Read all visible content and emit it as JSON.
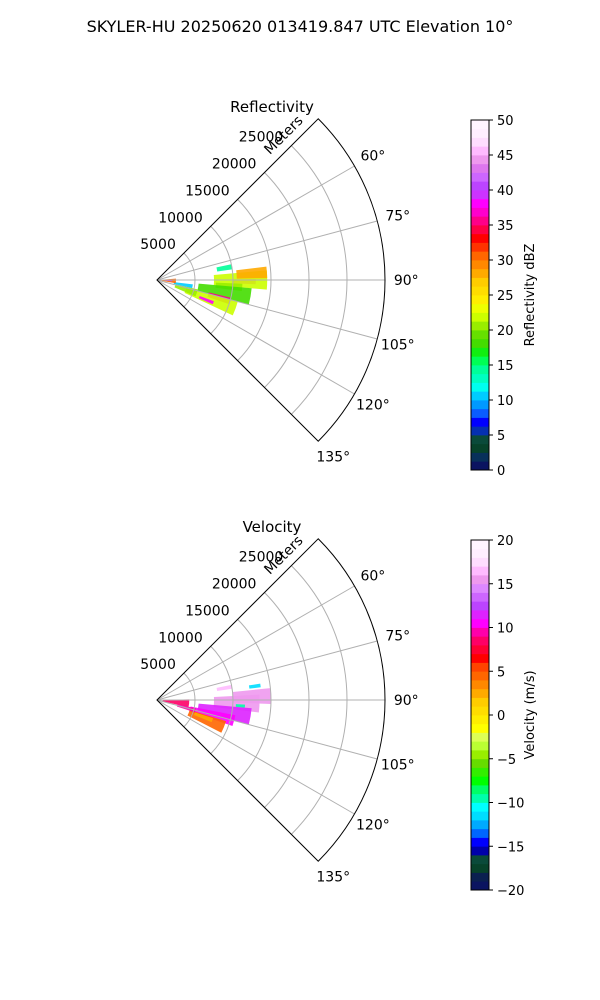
{
  "figure": {
    "title": "SKYLER-HU  20250620  013419.847 UTC Elevation 10°"
  },
  "chart_data": [
    {
      "type": "heatmap",
      "subtype": "polar-ppi-sector",
      "title": "Reflectivity",
      "range_label": "Meters",
      "range_ticks": [
        5000,
        10000,
        15000,
        20000,
        25000
      ],
      "range_tick_labels": [
        "5000",
        "10000",
        "15000",
        "20000",
        "25000"
      ],
      "range_max": 30000,
      "azimuth_range_deg": [
        45,
        135
      ],
      "azimuth_ticks_deg": [
        60,
        75,
        90,
        105,
        120,
        135
      ],
      "azimuth_tick_labels": [
        "60°",
        "75°",
        "90°",
        "105°",
        "120°",
        "135°"
      ],
      "grid": true,
      "colorbar": {
        "label": "Reflectivity dBZ",
        "range": [
          0,
          50
        ],
        "ticks": [
          0,
          5,
          10,
          15,
          20,
          25,
          30,
          35,
          40,
          45,
          50
        ],
        "tick_labels": [
          "0",
          "5",
          "10",
          "15",
          "20",
          "25",
          "30",
          "35",
          "40",
          "45",
          "50"
        ],
        "colors": [
          "#0b1460",
          "#08305a",
          "#07422a",
          "#0a4a3a",
          "#0530b0",
          "#0000ff",
          "#0a5cff",
          "#0099ff",
          "#00ccff",
          "#00ffee",
          "#00ffc0",
          "#00ff99",
          "#00ff55",
          "#11ee11",
          "#44dd00",
          "#66e000",
          "#99ee00",
          "#ccff00",
          "#eeff00",
          "#ffee00",
          "#ffdd00",
          "#ffcc00",
          "#ffaa00",
          "#ff8800",
          "#ff6600",
          "#ff3300",
          "#ff0000",
          "#ff0044",
          "#ff0088",
          "#ff00cc",
          "#ff00ff",
          "#cc33ff",
          "#bb44ff",
          "#cc66ff",
          "#dd77ee",
          "#ee99ee",
          "#ffbbff",
          "#ffddff",
          "#ffeeff",
          "#fff5ff"
        ]
      },
      "echo_regions": [
        {
          "az": 91,
          "r": 11500,
          "daz": 3,
          "dr": 3000,
          "value": 38
        },
        {
          "az": 90,
          "r": 11000,
          "daz": 10,
          "dr": 7000,
          "value": 22
        },
        {
          "az": 86,
          "r": 12500,
          "daz": 6,
          "dr": 4000,
          "value": 28
        },
        {
          "az": 95,
          "r": 9500,
          "daz": 5,
          "dr": 3500,
          "value": 20
        },
        {
          "az": 100,
          "r": 9000,
          "daz": 10,
          "dr": 7000,
          "value": 18
        },
        {
          "az": 106,
          "r": 8500,
          "daz": 5,
          "dr": 3000,
          "value": 35
        },
        {
          "az": 110,
          "r": 7500,
          "daz": 10,
          "dr": 7000,
          "value": 22
        },
        {
          "az": 112,
          "r": 7000,
          "daz": 3,
          "dr": 2000,
          "value": 38
        },
        {
          "az": 108,
          "r": 4000,
          "daz": 10,
          "dr": 3000,
          "value": 20
        },
        {
          "az": 100,
          "r": 3500,
          "daz": 6,
          "dr": 2500,
          "value": 10
        },
        {
          "az": 93,
          "r": 1500,
          "daz": 14,
          "dr": 2000,
          "value": 30
        },
        {
          "az": 92,
          "r": 1500,
          "daz": 6,
          "dr": 1000,
          "value": 40
        },
        {
          "az": 80,
          "r": 9000,
          "daz": 4,
          "dr": 2000,
          "value": 14
        }
      ]
    },
    {
      "type": "heatmap",
      "subtype": "polar-ppi-sector",
      "title": "Velocity",
      "range_label": "Meters",
      "range_ticks": [
        5000,
        10000,
        15000,
        20000,
        25000
      ],
      "range_tick_labels": [
        "5000",
        "10000",
        "15000",
        "20000",
        "25000"
      ],
      "range_max": 30000,
      "azimuth_range_deg": [
        45,
        135
      ],
      "azimuth_ticks_deg": [
        60,
        75,
        90,
        105,
        120,
        135
      ],
      "azimuth_tick_labels": [
        "60°",
        "75°",
        "90°",
        "105°",
        "120°",
        "135°"
      ],
      "grid": true,
      "colorbar": {
        "label": "Velocity (m/s)",
        "range": [
          -20,
          20
        ],
        "ticks": [
          -20,
          -15,
          -10,
          -5,
          0,
          5,
          10,
          15,
          20
        ],
        "tick_labels": [
          "−20",
          "−15",
          "−10",
          "−5",
          "0",
          "5",
          "10",
          "15",
          "20"
        ],
        "colors": [
          "#0b1460",
          "#0b2050",
          "#07422a",
          "#0a4a3a",
          "#0000aa",
          "#0000ff",
          "#0066ff",
          "#00aaff",
          "#00ddff",
          "#00ffff",
          "#00ffaa",
          "#00ff66",
          "#00ff00",
          "#33ee00",
          "#66dd00",
          "#99ee00",
          "#bbff33",
          "#ddff55",
          "#ffff00",
          "#ffee00",
          "#ffdd00",
          "#ffcc00",
          "#ffaa00",
          "#ff8800",
          "#ff6600",
          "#ff4400",
          "#ff0000",
          "#ff0033",
          "#ff0066",
          "#ff00aa",
          "#ff00ff",
          "#dd22ff",
          "#bb44ff",
          "#cc66ff",
          "#dd88ff",
          "#ee99ee",
          "#ffbbff",
          "#ffddff",
          "#ffeeff",
          "#fff5ff"
        ]
      },
      "echo_regions": [
        {
          "az": 88,
          "r": 12500,
          "daz": 8,
          "dr": 5000,
          "value": 15
        },
        {
          "az": 92,
          "r": 10500,
          "daz": 10,
          "dr": 6000,
          "value": 15
        },
        {
          "az": 94,
          "r": 11000,
          "daz": 2,
          "dr": 1200,
          "value": -10
        },
        {
          "az": 82,
          "r": 13000,
          "daz": 2,
          "dr": 1500,
          "value": -12
        },
        {
          "az": 100,
          "r": 9000,
          "daz": 10,
          "dr": 7000,
          "value": 11
        },
        {
          "az": 105,
          "r": 7500,
          "daz": 8,
          "dr": 6000,
          "value": 10
        },
        {
          "az": 112,
          "r": 7000,
          "daz": 10,
          "dr": 5000,
          "value": 4
        },
        {
          "az": 110,
          "r": 6500,
          "daz": 4,
          "dr": 2500,
          "value": 2
        },
        {
          "az": 96,
          "r": 2500,
          "daz": 14,
          "dr": 3500,
          "value": 8
        },
        {
          "az": 105,
          "r": 4000,
          "daz": 6,
          "dr": 2500,
          "value": 9
        },
        {
          "az": 80,
          "r": 9000,
          "daz": 3,
          "dr": 2000,
          "value": 16
        }
      ]
    }
  ]
}
